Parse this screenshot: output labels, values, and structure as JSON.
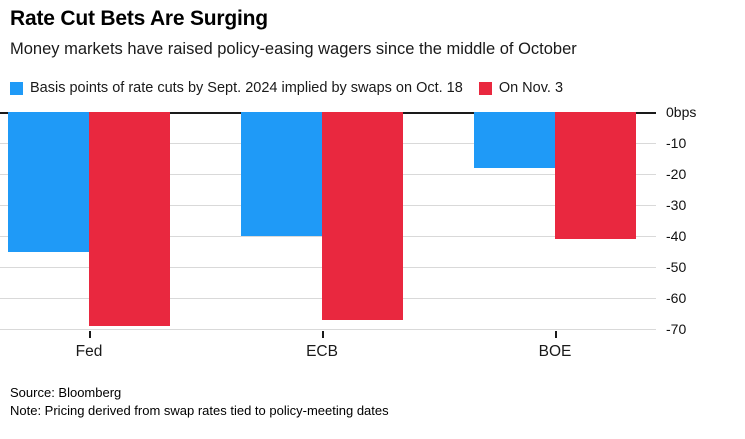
{
  "header": {
    "title": "Rate Cut Bets Are Surging",
    "subtitle": "Money markets have raised policy-easing wagers since the middle of October"
  },
  "footer": {
    "source": "Source: Bloomberg",
    "note": "Note: Pricing derived from swap rates tied to policy-meeting dates"
  },
  "colors": {
    "oct18_blue": "#1f9af7",
    "nov3_red": "#e9283f",
    "gridline": "#d9d9d9",
    "zero_line": "#1a1a1a"
  },
  "chart_data": {
    "type": "bar",
    "orientation": "vertical-negative",
    "categories": [
      "Fed",
      "ECB",
      "BOE"
    ],
    "series": [
      {
        "name": "Basis points of rate cuts by Sept. 2024 implied by swaps on Oct. 18",
        "color": "#1f9af7",
        "values": [
          -45,
          -40,
          -18
        ]
      },
      {
        "name": "On Nov. 3",
        "color": "#e9283f",
        "values": [
          -69,
          -67,
          -41
        ]
      }
    ],
    "title": "Rate Cut Bets Are Surging",
    "subtitle": "Money markets have raised policy-easing wagers since the middle of October",
    "ylabel": "",
    "xlabel": "",
    "ylim": [
      -70,
      0
    ],
    "ytick_labels": [
      "0bps",
      "-10",
      "-20",
      "-30",
      "-40",
      "-50",
      "-60",
      "-70"
    ],
    "grid": "horizontal",
    "legend_position": "top-left",
    "axis_label_side": "right"
  }
}
